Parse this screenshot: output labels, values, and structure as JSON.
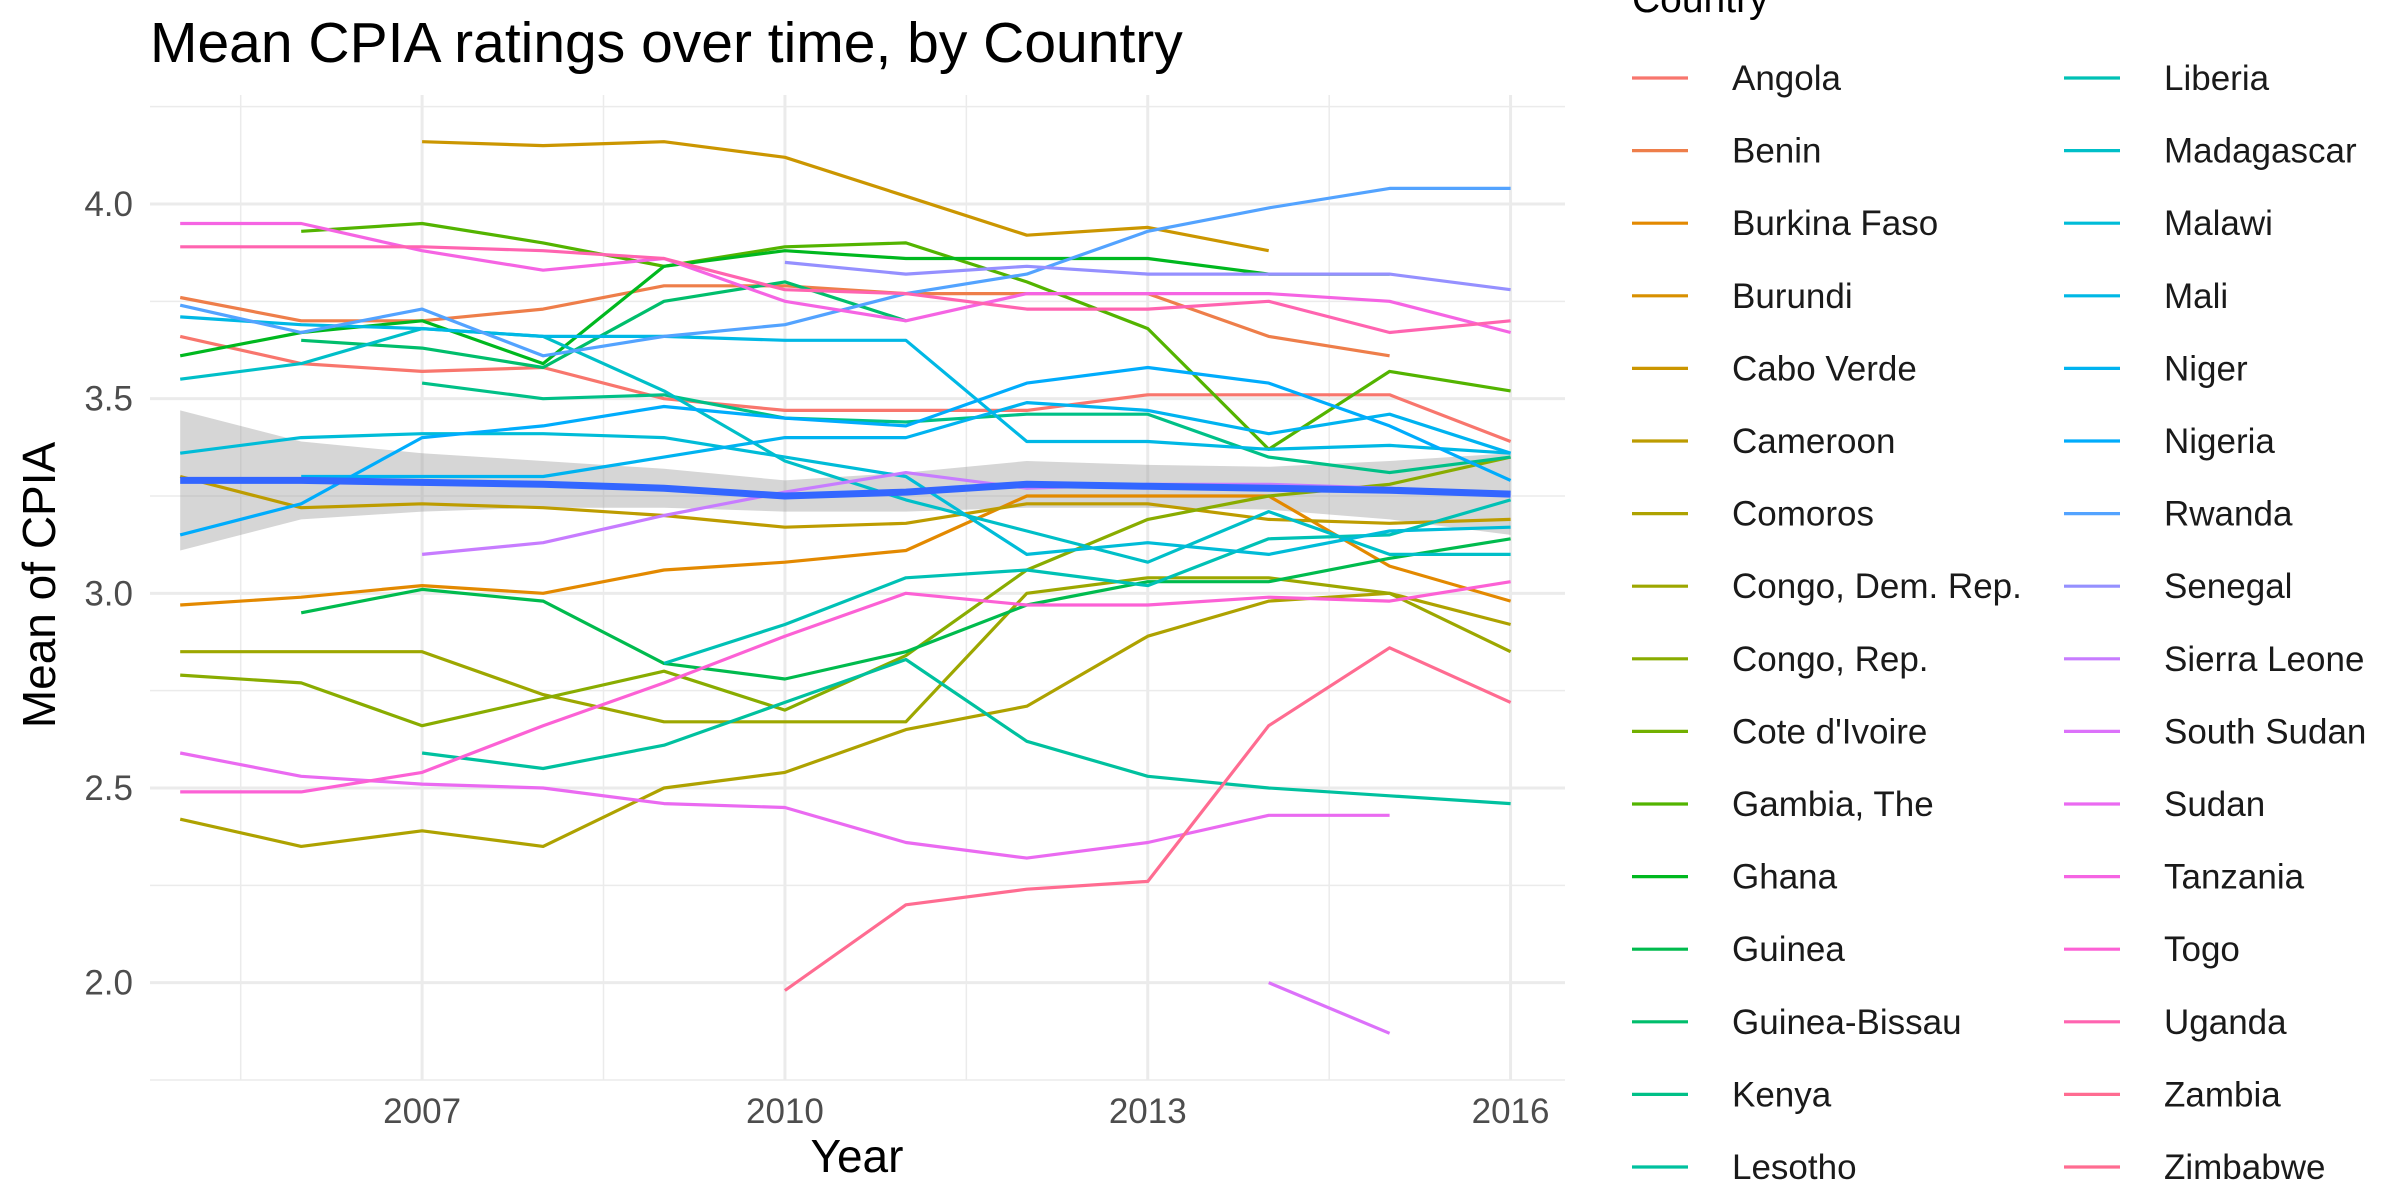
{
  "chart_data": {
    "type": "line",
    "title": "Mean CPIA ratings over time, by Country",
    "xlabel": "Year",
    "ylabel": "Mean of CPIA",
    "x_ticks": [
      2007,
      2010,
      2013,
      2016
    ],
    "y_ticks": [
      2.0,
      2.5,
      3.0,
      3.5,
      4.0
    ],
    "y_tick_labels": [
      "2.0",
      "2.5",
      "3.0",
      "3.5",
      "4.0"
    ],
    "xlim": [
      2004.75,
      2016.45
    ],
    "ylim": [
      1.75,
      4.28
    ],
    "grid": true,
    "legend_title": "Country",
    "legend_position": "right",
    "smooth": {
      "color": "#3366FF",
      "x": [
        2005,
        2006,
        2007,
        2008,
        2009,
        2010,
        2011,
        2012,
        2013,
        2014,
        2015,
        2016
      ],
      "y": [
        3.29,
        3.29,
        3.285,
        3.28,
        3.27,
        3.25,
        3.26,
        3.28,
        3.275,
        3.27,
        3.265,
        3.255
      ],
      "lower": [
        3.11,
        3.19,
        3.21,
        3.22,
        3.22,
        3.21,
        3.21,
        3.22,
        3.22,
        3.215,
        3.19,
        3.15
      ],
      "upper": [
        3.47,
        3.39,
        3.36,
        3.34,
        3.32,
        3.29,
        3.31,
        3.34,
        3.33,
        3.325,
        3.34,
        3.36
      ]
    },
    "series": [
      {
        "name": "Angola",
        "color": "#F8766D",
        "x": [
          2005,
          2006,
          2007,
          2008,
          2009,
          2010,
          2011,
          2012,
          2013,
          2014,
          2015,
          2016
        ],
        "y": [
          3.66,
          3.59,
          3.57,
          3.58,
          3.5,
          3.47,
          3.47,
          3.47,
          3.51,
          3.51,
          3.51,
          3.39
        ]
      },
      {
        "name": "Benin",
        "color": "#EE7E4A",
        "x": [
          2005,
          2006,
          2007,
          2008,
          2009,
          2010,
          2011,
          2012,
          2013,
          2014,
          2015,
          2016
        ],
        "y": [
          3.76,
          3.7,
          3.7,
          3.73,
          3.79,
          3.79,
          3.77,
          3.77,
          3.77,
          3.66,
          3.61,
          null
        ]
      },
      {
        "name": "Burkina Faso",
        "color": "#E38900",
        "x": [
          2005,
          2006,
          2007,
          2008,
          2009,
          2010,
          2011,
          2012,
          2013,
          2014,
          2015,
          2016
        ],
        "y": [
          2.97,
          2.99,
          3.02,
          3.0,
          3.06,
          3.08,
          3.11,
          3.25,
          3.25,
          3.25,
          3.07,
          2.98
        ]
      },
      {
        "name": "Burundi",
        "color": "#D89000",
        "x": [
          2005,
          2006,
          2007,
          2008,
          2009,
          2010,
          2011,
          2012,
          2013,
          2014,
          2015,
          2016
        ],
        "y": [
          null,
          null,
          null,
          null,
          null,
          null,
          null,
          null,
          null,
          null,
          null,
          null
        ]
      },
      {
        "name": "Cabo Verde",
        "color": "#CB9600",
        "x": [
          2005,
          2006,
          2007,
          2008,
          2009,
          2010,
          2011,
          2012,
          2013,
          2014,
          2015,
          2016
        ],
        "y": [
          null,
          null,
          4.16,
          4.15,
          4.16,
          4.12,
          4.02,
          3.92,
          3.94,
          3.88,
          null,
          null
        ]
      },
      {
        "name": "Cameroon",
        "color": "#BD9C00",
        "x": [
          2005,
          2006,
          2007,
          2008,
          2009,
          2010,
          2011,
          2012,
          2013,
          2014,
          2015,
          2016
        ],
        "y": [
          3.3,
          3.22,
          3.23,
          3.22,
          3.2,
          3.17,
          3.18,
          3.23,
          3.23,
          3.19,
          3.18,
          3.19
        ]
      },
      {
        "name": "Comoros",
        "color": "#AEA200",
        "x": [
          2005,
          2006,
          2007,
          2008,
          2009,
          2010,
          2011,
          2012,
          2013,
          2014,
          2015,
          2016
        ],
        "y": [
          2.42,
          2.35,
          2.39,
          2.35,
          2.5,
          2.54,
          2.65,
          2.71,
          2.89,
          2.98,
          3.0,
          2.92
        ]
      },
      {
        "name": "Congo, Dem. Rep.",
        "color": "#9DA700",
        "x": [
          2005,
          2006,
          2007,
          2008,
          2009,
          2010,
          2011,
          2012,
          2013,
          2014,
          2015,
          2016
        ],
        "y": [
          2.85,
          2.85,
          2.85,
          2.74,
          2.67,
          2.67,
          2.67,
          3.0,
          3.04,
          3.04,
          3.0,
          2.85
        ]
      },
      {
        "name": "Congo, Rep.",
        "color": "#89AC00",
        "x": [
          2005,
          2006,
          2007,
          2008,
          2009,
          2010,
          2011,
          2012,
          2013,
          2014,
          2015,
          2016
        ],
        "y": [
          2.79,
          2.77,
          2.66,
          2.73,
          2.8,
          2.7,
          2.84,
          3.06,
          3.19,
          3.25,
          3.28,
          3.35
        ]
      },
      {
        "name": "Cote d'Ivoire",
        "color": "#72B000",
        "x": [
          2005,
          2006,
          2007,
          2008,
          2009,
          2010,
          2011,
          2012,
          2013,
          2014,
          2015,
          2016
        ],
        "y": [
          null,
          null,
          null,
          null,
          null,
          null,
          null,
          null,
          null,
          null,
          null,
          null
        ]
      },
      {
        "name": "Gambia, The",
        "color": "#53B400",
        "x": [
          2005,
          2006,
          2007,
          2008,
          2009,
          2010,
          2011,
          2012,
          2013,
          2014,
          2015,
          2016
        ],
        "y": [
          null,
          3.93,
          3.95,
          3.9,
          3.84,
          3.89,
          3.9,
          3.8,
          3.68,
          3.37,
          3.57,
          3.52
        ]
      },
      {
        "name": "Ghana",
        "color": "#00B81F",
        "x": [
          2005,
          2006,
          2007,
          2008,
          2009,
          2010,
          2011,
          2012,
          2013,
          2014,
          2015,
          2016
        ],
        "y": [
          3.61,
          3.67,
          3.7,
          3.59,
          3.84,
          3.88,
          3.86,
          3.86,
          3.86,
          3.82,
          3.82,
          null
        ]
      },
      {
        "name": "Guinea",
        "color": "#00BB4E",
        "x": [
          2005,
          2006,
          2007,
          2008,
          2009,
          2010,
          2011,
          2012,
          2013,
          2014,
          2015,
          2016
        ],
        "y": [
          null,
          2.95,
          3.01,
          2.98,
          2.82,
          2.78,
          2.85,
          2.97,
          3.03,
          3.03,
          3.09,
          3.14
        ]
      },
      {
        "name": "Guinea-Bissau",
        "color": "#00BE6C",
        "x": [
          2005,
          2006,
          2007,
          2008,
          2009,
          2010,
          2011,
          2012,
          2013,
          2014,
          2015,
          2016
        ],
        "y": [
          null,
          3.65,
          3.63,
          3.58,
          3.75,
          3.8,
          3.7,
          null,
          null,
          null,
          null,
          null
        ]
      },
      {
        "name": "Kenya",
        "color": "#00C087",
        "x": [
          2005,
          2006,
          2007,
          2008,
          2009,
          2010,
          2011,
          2012,
          2013,
          2014,
          2015,
          2016
        ],
        "y": [
          null,
          null,
          3.54,
          3.5,
          3.51,
          3.45,
          3.44,
          3.46,
          3.46,
          3.35,
          3.31,
          3.35
        ]
      },
      {
        "name": "Lesotho",
        "color": "#00C19F",
        "x": [
          2005,
          2006,
          2007,
          2008,
          2009,
          2010,
          2011,
          2012,
          2013,
          2014,
          2015,
          2016
        ],
        "y": [
          null,
          null,
          2.59,
          2.55,
          2.61,
          2.72,
          2.83,
          2.62,
          2.53,
          2.5,
          2.48,
          2.46
        ]
      },
      {
        "name": "Liberia",
        "color": "#00C1B5",
        "x": [
          2005,
          2006,
          2007,
          2008,
          2009,
          2010,
          2011,
          2012,
          2013,
          2014,
          2015,
          2016
        ],
        "y": [
          null,
          null,
          null,
          null,
          2.82,
          2.92,
          3.04,
          3.06,
          3.02,
          3.14,
          3.15,
          3.24
        ]
      },
      {
        "name": "Madagascar",
        "color": "#00BFC8",
        "x": [
          2005,
          2006,
          2007,
          2008,
          2009,
          2010,
          2011,
          2012,
          2013,
          2014,
          2015,
          2016
        ],
        "y": [
          3.55,
          3.59,
          3.68,
          3.66,
          3.52,
          3.34,
          3.24,
          3.16,
          3.08,
          3.21,
          3.1,
          3.1
        ]
      },
      {
        "name": "Malawi",
        "color": "#00BCD8",
        "x": [
          2005,
          2006,
          2007,
          2008,
          2009,
          2010,
          2011,
          2012,
          2013,
          2014,
          2015,
          2016
        ],
        "y": [
          3.36,
          3.4,
          3.41,
          3.41,
          3.4,
          3.35,
          3.3,
          3.1,
          3.13,
          3.1,
          3.16,
          3.17
        ]
      },
      {
        "name": "Mali",
        "color": "#00B8E5",
        "x": [
          2005,
          2006,
          2007,
          2008,
          2009,
          2010,
          2011,
          2012,
          2013,
          2014,
          2015,
          2016
        ],
        "y": [
          3.71,
          3.69,
          3.68,
          3.66,
          3.66,
          3.65,
          3.65,
          3.39,
          3.39,
          3.37,
          3.38,
          3.36
        ]
      },
      {
        "name": "Niger",
        "color": "#00B3F0",
        "x": [
          2005,
          2006,
          2007,
          2008,
          2009,
          2010,
          2011,
          2012,
          2013,
          2014,
          2015,
          2016
        ],
        "y": [
          null,
          3.3,
          3.3,
          3.3,
          3.35,
          3.4,
          3.4,
          3.49,
          3.47,
          3.41,
          3.46,
          3.36
        ]
      },
      {
        "name": "Nigeria",
        "color": "#00ACFC",
        "x": [
          2005,
          2006,
          2007,
          2008,
          2009,
          2010,
          2011,
          2012,
          2013,
          2014,
          2015,
          2016
        ],
        "y": [
          3.15,
          3.23,
          3.4,
          3.43,
          3.48,
          3.45,
          3.43,
          3.54,
          3.58,
          3.54,
          3.43,
          3.29
        ]
      },
      {
        "name": "Rwanda",
        "color": "#53A3FF",
        "x": [
          2005,
          2006,
          2007,
          2008,
          2009,
          2010,
          2011,
          2012,
          2013,
          2014,
          2015,
          2016
        ],
        "y": [
          3.74,
          3.67,
          3.73,
          3.61,
          3.66,
          3.69,
          3.77,
          3.82,
          3.93,
          3.99,
          4.04,
          4.04
        ]
      },
      {
        "name": "Senegal",
        "color": "#9590FF",
        "x": [
          2005,
          2006,
          2007,
          2008,
          2009,
          2010,
          2011,
          2012,
          2013,
          2014,
          2015,
          2016
        ],
        "y": [
          null,
          null,
          null,
          null,
          null,
          3.85,
          3.82,
          3.84,
          3.82,
          3.82,
          3.82,
          3.78
        ]
      },
      {
        "name": "Sierra Leone",
        "color": "#C77CFF",
        "x": [
          2005,
          2006,
          2007,
          2008,
          2009,
          2010,
          2011,
          2012,
          2013,
          2014,
          2015,
          2016
        ],
        "y": [
          null,
          null,
          3.1,
          3.13,
          3.2,
          3.26,
          3.31,
          3.27,
          3.28,
          3.28,
          3.27,
          3.25
        ]
      },
      {
        "name": "South Sudan",
        "color": "#DC71FA",
        "x": [
          2005,
          2006,
          2007,
          2008,
          2009,
          2010,
          2011,
          2012,
          2013,
          2014,
          2015,
          2016
        ],
        "y": [
          null,
          null,
          null,
          null,
          null,
          null,
          null,
          null,
          null,
          2.0,
          1.87,
          null
        ]
      },
      {
        "name": "Sudan",
        "color": "#EA6AF1",
        "x": [
          2005,
          2006,
          2007,
          2008,
          2009,
          2010,
          2011,
          2012,
          2013,
          2014,
          2015,
          2016
        ],
        "y": [
          2.59,
          2.53,
          2.51,
          2.5,
          2.46,
          2.45,
          2.36,
          2.32,
          2.36,
          2.43,
          2.43,
          null
        ]
      },
      {
        "name": "Tanzania",
        "color": "#F564E3",
        "x": [
          2005,
          2006,
          2007,
          2008,
          2009,
          2010,
          2011,
          2012,
          2013,
          2014,
          2015,
          2016
        ],
        "y": [
          3.95,
          3.95,
          3.88,
          3.83,
          3.86,
          3.75,
          3.7,
          3.77,
          3.77,
          3.77,
          3.75,
          3.67
        ]
      },
      {
        "name": "Togo",
        "color": "#FC61D5",
        "x": [
          2005,
          2006,
          2007,
          2008,
          2009,
          2010,
          2011,
          2012,
          2013,
          2014,
          2015,
          2016
        ],
        "y": [
          2.49,
          2.49,
          2.54,
          2.66,
          2.77,
          2.89,
          3.0,
          2.97,
          2.97,
          2.99,
          2.98,
          3.03
        ]
      },
      {
        "name": "Uganda",
        "color": "#FF64B0",
        "x": [
          2005,
          2006,
          2007,
          2008,
          2009,
          2010,
          2011,
          2012,
          2013,
          2014,
          2015,
          2016
        ],
        "y": [
          3.89,
          3.89,
          3.89,
          3.88,
          3.86,
          3.78,
          3.77,
          3.73,
          3.73,
          3.75,
          3.67,
          3.7
        ]
      },
      {
        "name": "Zambia",
        "color": "#FF6C91",
        "x": [
          2005,
          2006,
          2007,
          2008,
          2009,
          2010,
          2011,
          2012,
          2013,
          2014,
          2015,
          2016
        ],
        "y": [
          null,
          null,
          null,
          null,
          null,
          null,
          null,
          null,
          null,
          null,
          null,
          null
        ]
      },
      {
        "name": "Zimbabwe",
        "color": "#FF6C91",
        "x": [
          2005,
          2006,
          2007,
          2008,
          2009,
          2010,
          2011,
          2012,
          2013,
          2014,
          2015,
          2016
        ],
        "y": [
          null,
          null,
          null,
          null,
          null,
          1.98,
          2.2,
          2.24,
          2.26,
          2.66,
          2.86,
          2.72
        ]
      }
    ]
  }
}
